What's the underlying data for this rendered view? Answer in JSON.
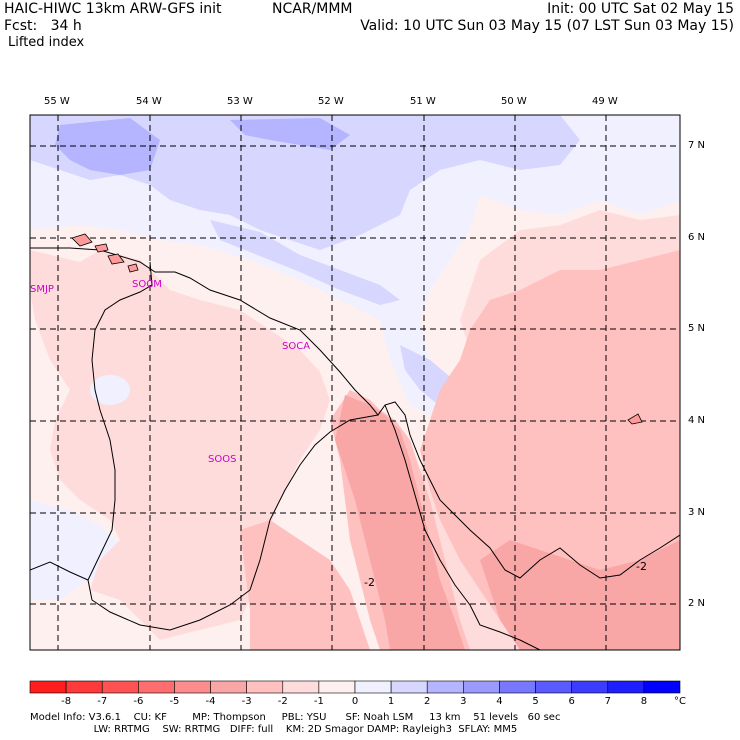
{
  "header": {
    "line1_left": "HAIC-HIWC 13km ARW-GFS init",
    "line1_mid": "NCAR/MMM",
    "line1_right": "Init: 00 UTC Sat 02 May 15",
    "line2_left": "Fcst:   34 h",
    "line2_right": "Valid: 10 UTC Sun 03 May 15 (07 LST Sun 03 May 15)",
    "field_name": "Lifted index"
  },
  "map": {
    "lon_labels": [
      "55 W",
      "54 W",
      "53 W",
      "52 W",
      "51 W",
      "50 W",
      "49 W"
    ],
    "lat_labels": [
      "7 N",
      "6 N",
      "5 N",
      "4 N",
      "3 N",
      "2 N"
    ],
    "stations": [
      "SMJP",
      "SOCM",
      "SOCA",
      "SOOS"
    ],
    "contour_labels": [
      "-2",
      "-2"
    ]
  },
  "colorbar": {
    "unit": "°C",
    "labels": [
      "-8",
      "-7",
      "-6",
      "-5",
      "-4",
      "-3",
      "-2",
      "-1",
      "0",
      "1",
      "2",
      "3",
      "4",
      "5",
      "6",
      "7",
      "8"
    ],
    "colors": [
      "#ff1e1e",
      "#ff3a3a",
      "#ff5252",
      "#ff6e6e",
      "#ff8c8c",
      "#f8a6a6",
      "#ffc0c0",
      "#ffdcdc",
      "#fff0f0",
      "#f0f0ff",
      "#d6d6ff",
      "#b4b4ff",
      "#9a9aff",
      "#7878ff",
      "#5a5aff",
      "#3c3cff",
      "#1e1eff",
      "#0000ff"
    ]
  },
  "footer": {
    "line1": "Model Info: V3.6.1    CU: KF        MP: Thompson     PBL: YSU      SF: Noah LSM     13 km    51 levels   60 sec",
    "line2": "                    LW: RRTMG    SW: RRTMG   DIFF: full    KM: 2D Smagor DAMP: Rayleigh3  SFLAY: MM5"
  }
}
